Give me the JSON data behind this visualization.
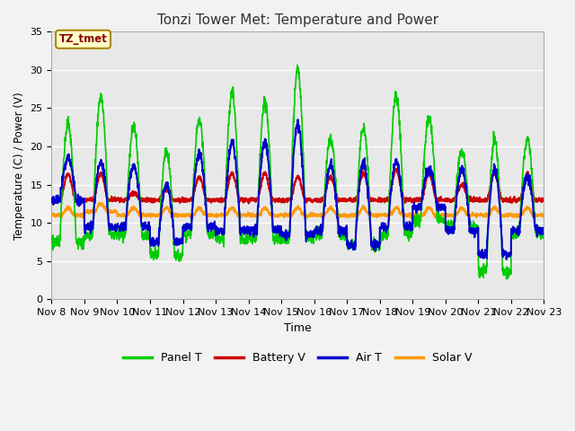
{
  "title": "Tonzi Tower Met: Temperature and Power",
  "xlabel": "Time",
  "ylabel": "Temperature (C) / Power (V)",
  "ylim": [
    0,
    35
  ],
  "yticks": [
    0,
    5,
    10,
    15,
    20,
    25,
    30,
    35
  ],
  "xtick_labels": [
    "Nov 8",
    "Nov 9",
    "Nov 10",
    "Nov 11",
    "Nov 12",
    "Nov 13",
    "Nov 14",
    "Nov 15",
    "Nov 16",
    "Nov 17",
    "Nov 18",
    "Nov 19",
    "Nov 20",
    "Nov 21",
    "Nov 22",
    "Nov 23"
  ],
  "legend_labels": [
    "Panel T",
    "Battery V",
    "Air T",
    "Solar V"
  ],
  "legend_colors": [
    "#00cc00",
    "#cc0000",
    "#0000cc",
    "#ff9900"
  ],
  "bg_color": "#e8e8e8",
  "grid_color": "#ffffff",
  "annotation_label": "TZ_tmet",
  "annotation_color": "#880000",
  "annotation_bg": "#ffffcc",
  "annotation_border": "#aa8800",
  "fig_bg": "#f2f2f2",
  "title_fontsize": 11,
  "axis_fontsize": 9,
  "tick_fontsize": 8
}
